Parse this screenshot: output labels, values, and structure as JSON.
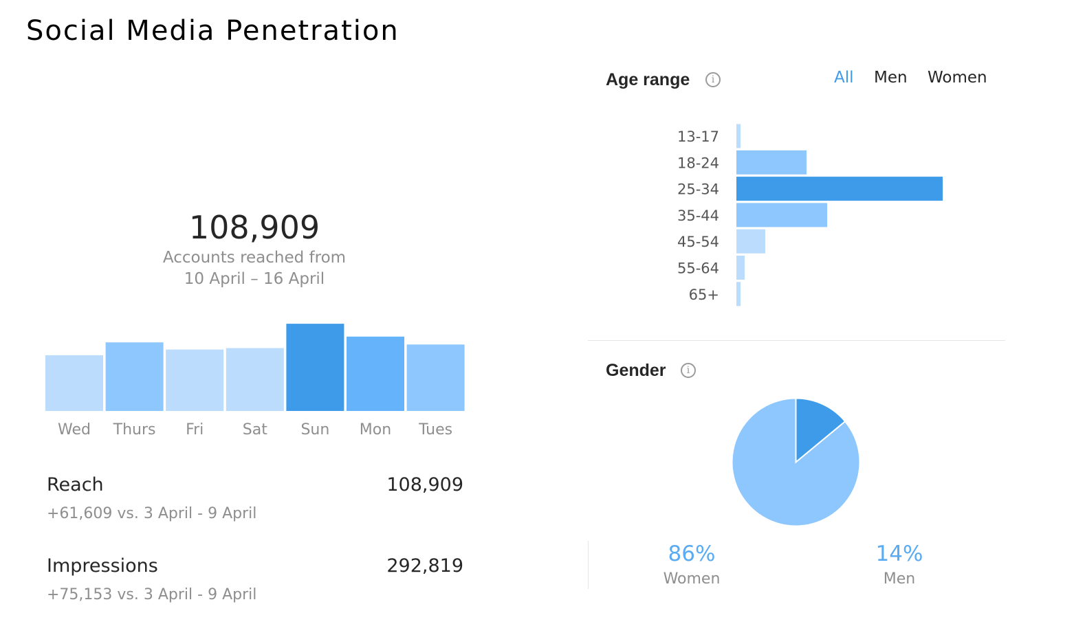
{
  "page": {
    "title": "Social Media Penetration"
  },
  "accounts": {
    "total": "108,909",
    "caption_line1": "Accounts reached from",
    "caption_line2": "10 April – 16 April"
  },
  "stats": {
    "reach": {
      "label": "Reach",
      "value": "108,909",
      "comparison": "+61,609 vs. 3 April - 9 April"
    },
    "impressions": {
      "label": "Impressions",
      "value": "292,819",
      "comparison": "+75,153 vs. 3 April - 9 April"
    }
  },
  "age_range": {
    "title": "Age range",
    "info_icon": "info-icon",
    "tabs": [
      {
        "label": "All",
        "active": true
      },
      {
        "label": "Men",
        "active": false
      },
      {
        "label": "Women",
        "active": false
      }
    ]
  },
  "gender": {
    "title": "Gender",
    "info_icon": "info-icon",
    "women_pct": "86%",
    "women_label": "Women",
    "men_pct": "14%",
    "men_label": "Men"
  },
  "colors": {
    "highlight": "#3d9be9",
    "strong": "#64b3fb",
    "medium": "#8ec7fd",
    "light": "#bcdcfd",
    "muted_text": "#8e8e8e",
    "tick_text": "#555555"
  },
  "chart_data": [
    {
      "type": "bar",
      "orientation": "vertical",
      "categories": [
        "Wed",
        "Thurs",
        "Fri",
        "Sat",
        "Sun",
        "Mon",
        "Tues"
      ],
      "values": [
        78,
        96,
        86,
        88,
        122,
        104,
        93
      ],
      "ylim": [
        0,
        125
      ],
      "grid": false,
      "shades": [
        "light",
        "medium",
        "light",
        "light",
        "highlight",
        "strong",
        "medium"
      ]
    },
    {
      "type": "bar",
      "orientation": "horizontal",
      "categories": [
        "13-17",
        "18-24",
        "25-34",
        "35-44",
        "45-54",
        "55-64",
        "65+"
      ],
      "values": [
        2,
        34,
        100,
        44,
        14,
        4,
        2
      ],
      "xlim": [
        0,
        100
      ],
      "grid": false,
      "shades": [
        "light",
        "medium",
        "highlight",
        "medium",
        "light",
        "light",
        "light"
      ]
    },
    {
      "type": "pie",
      "categories": [
        "Women",
        "Men"
      ],
      "values": [
        86,
        14
      ],
      "colors": [
        "#8ec7fd",
        "#3d9be9"
      ]
    }
  ]
}
